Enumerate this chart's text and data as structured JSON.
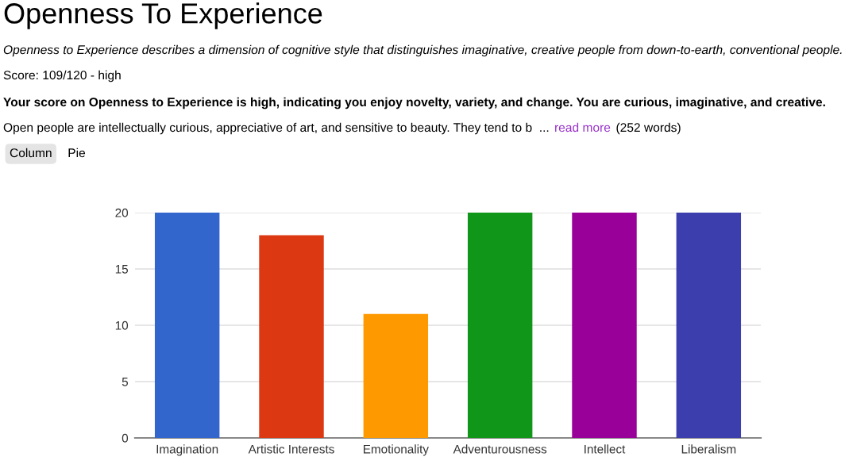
{
  "chart_data": {
    "type": "bar",
    "title": "Openness To Experience",
    "subtitle": "Openness to Experience describes a dimension of cognitive style that distinguishes imaginative, creative people from down-to-earth, conventional people.",
    "annotations": [
      "Score: 109/120 - high",
      "Your score on Openness to Experience is high, indicating you enjoy novelty, variety, and change. You are curious, imaginative, and creative.",
      "Open people are intellectually curious, appreciative of art, and sensitive to beauty. They tend to b  ...",
      "read more",
      "(252 words)",
      "Column",
      "Pie"
    ],
    "categories": [
      "Imagination",
      "Artistic Interests",
      "Emotionality",
      "Adventurousness",
      "Intellect",
      "Liberalism"
    ],
    "values": [
      20,
      18,
      11,
      20,
      20,
      20
    ],
    "colors": [
      "#3366cc",
      "#dc3912",
      "#ff9900",
      "#109618",
      "#990099",
      "#3b3eac"
    ],
    "ylim": [
      0,
      20
    ],
    "yticks": [
      0,
      5,
      10,
      15,
      20
    ],
    "grid": "y"
  }
}
